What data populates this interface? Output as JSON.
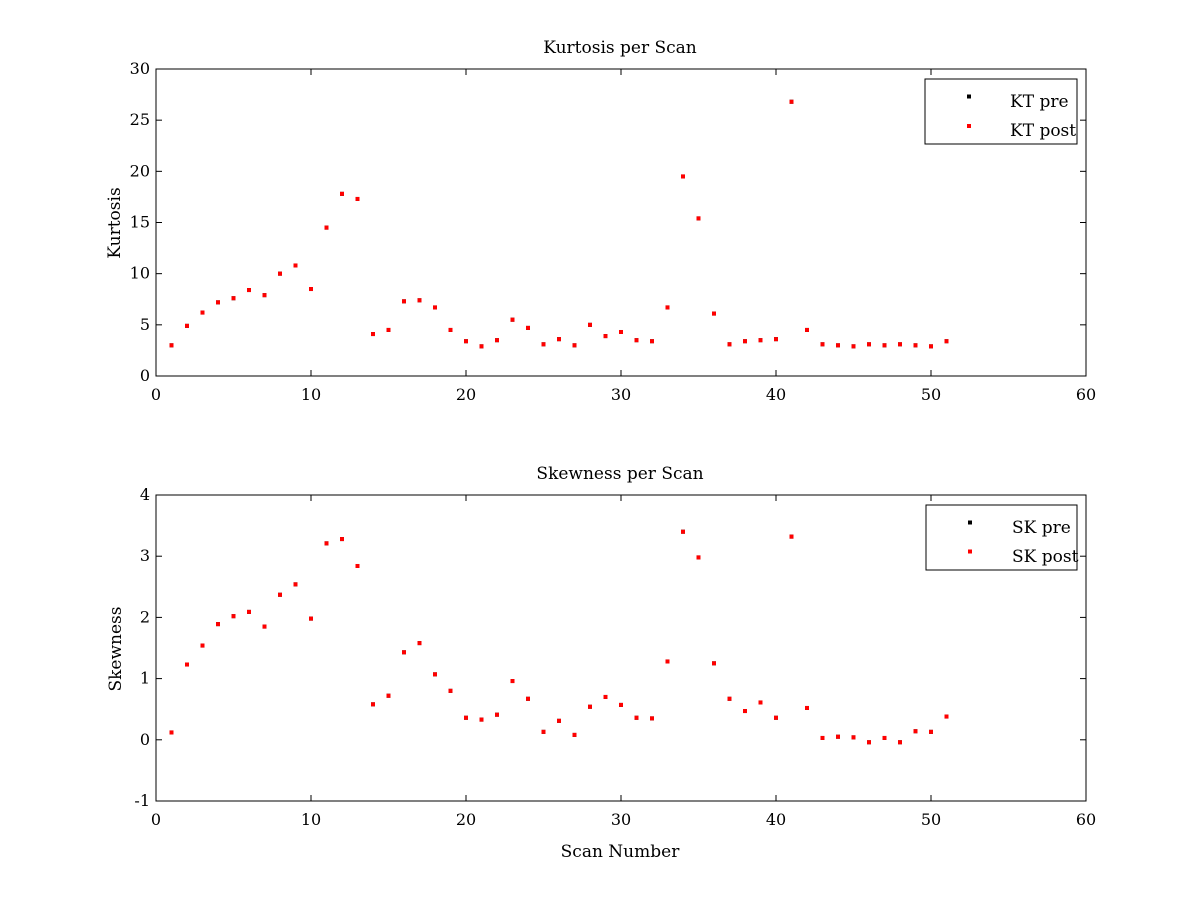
{
  "colors": {
    "pre": "#000000",
    "post": "#ff0000",
    "axes": "#000000",
    "background": "#ffffff"
  },
  "chart_data": [
    {
      "type": "scatter",
      "title": "Kurtosis per Scan",
      "xlabel": "",
      "ylabel": "Kurtosis",
      "xlim": [
        0,
        60
      ],
      "ylim": [
        0,
        30
      ],
      "xticks": [
        "0",
        "10",
        "20",
        "30",
        "40",
        "50",
        "60"
      ],
      "yticks": [
        "0",
        "5",
        "10",
        "15",
        "20",
        "25",
        "30"
      ],
      "grid": false,
      "legend_position": "top-right",
      "legend": [
        "KT pre",
        "KT post"
      ],
      "x": [
        1,
        2,
        3,
        4,
        5,
        6,
        7,
        8,
        9,
        10,
        11,
        12,
        13,
        14,
        15,
        16,
        17,
        18,
        19,
        20,
        21,
        22,
        23,
        24,
        25,
        26,
        27,
        28,
        29,
        30,
        31,
        32,
        33,
        34,
        35,
        36,
        37,
        38,
        39,
        40,
        41,
        42,
        43,
        44,
        45,
        46,
        47,
        48,
        49,
        50,
        51
      ],
      "series": [
        {
          "name": "KT pre",
          "values": [
            3.0,
            4.9,
            6.2,
            7.2,
            7.6,
            8.4,
            7.9,
            10.0,
            10.8,
            8.5,
            14.5,
            17.8,
            17.3,
            4.1,
            4.5,
            7.3,
            7.4,
            6.7,
            4.5,
            3.4,
            2.9,
            3.5,
            5.5,
            4.7,
            3.1,
            3.6,
            3.0,
            5.0,
            3.9,
            4.3,
            3.5,
            3.4,
            6.7,
            19.5,
            15.4,
            6.1,
            3.1,
            3.4,
            3.5,
            3.6,
            26.8,
            4.5,
            3.1,
            3.0,
            2.9,
            3.1,
            3.0,
            3.1,
            3.0,
            2.9,
            3.4
          ]
        },
        {
          "name": "KT post",
          "values": [
            3.0,
            4.9,
            6.2,
            7.2,
            7.6,
            8.4,
            7.9,
            10.0,
            10.8,
            8.5,
            14.5,
            17.8,
            17.3,
            4.1,
            4.5,
            7.3,
            7.4,
            6.7,
            4.5,
            3.4,
            2.9,
            3.5,
            5.5,
            4.7,
            3.1,
            3.6,
            3.0,
            5.0,
            3.9,
            4.3,
            3.5,
            3.4,
            6.7,
            19.5,
            15.4,
            6.1,
            3.1,
            3.4,
            3.5,
            3.6,
            26.8,
            4.5,
            3.1,
            3.0,
            2.9,
            3.1,
            3.0,
            3.1,
            3.0,
            2.9,
            3.4
          ]
        }
      ]
    },
    {
      "type": "scatter",
      "title": "Skewness per Scan",
      "xlabel": "Scan Number",
      "ylabel": "Skewness",
      "xlim": [
        0,
        60
      ],
      "ylim": [
        -1,
        4
      ],
      "xticks": [
        "0",
        "10",
        "20",
        "30",
        "40",
        "50",
        "60"
      ],
      "yticks": [
        "-1",
        "0",
        "1",
        "2",
        "3",
        "4"
      ],
      "grid": false,
      "legend_position": "top-right",
      "legend": [
        "SK pre",
        "SK post"
      ],
      "x": [
        1,
        2,
        3,
        4,
        5,
        6,
        7,
        8,
        9,
        10,
        11,
        12,
        13,
        14,
        15,
        16,
        17,
        18,
        19,
        20,
        21,
        22,
        23,
        24,
        25,
        26,
        27,
        28,
        29,
        30,
        31,
        32,
        33,
        34,
        35,
        36,
        37,
        38,
        39,
        40,
        41,
        42,
        43,
        44,
        45,
        46,
        47,
        48,
        49,
        50,
        51
      ],
      "series": [
        {
          "name": "SK pre",
          "values": [
            0.12,
            1.23,
            1.54,
            1.89,
            2.02,
            2.09,
            1.85,
            2.37,
            2.54,
            1.98,
            3.21,
            3.28,
            2.84,
            0.58,
            0.72,
            1.43,
            1.58,
            1.07,
            0.8,
            0.36,
            0.33,
            0.41,
            0.96,
            0.67,
            0.13,
            0.31,
            0.08,
            0.54,
            0.7,
            0.57,
            0.36,
            0.35,
            1.28,
            3.4,
            2.98,
            1.25,
            0.67,
            0.47,
            0.61,
            0.36,
            3.32,
            0.52,
            0.03,
            0.05,
            0.04,
            -0.04,
            0.03,
            -0.04,
            0.14,
            0.13,
            0.38
          ]
        },
        {
          "name": "SK post",
          "values": [
            0.12,
            1.23,
            1.54,
            1.89,
            2.02,
            2.09,
            1.85,
            2.37,
            2.54,
            1.98,
            3.21,
            3.28,
            2.84,
            0.58,
            0.72,
            1.43,
            1.58,
            1.07,
            0.8,
            0.36,
            0.33,
            0.41,
            0.96,
            0.67,
            0.13,
            0.31,
            0.08,
            0.54,
            0.7,
            0.57,
            0.36,
            0.35,
            1.28,
            3.4,
            2.98,
            1.25,
            0.67,
            0.47,
            0.61,
            0.36,
            3.32,
            0.52,
            0.03,
            0.05,
            0.04,
            -0.04,
            0.03,
            -0.04,
            0.14,
            0.13,
            0.38
          ]
        }
      ]
    }
  ]
}
